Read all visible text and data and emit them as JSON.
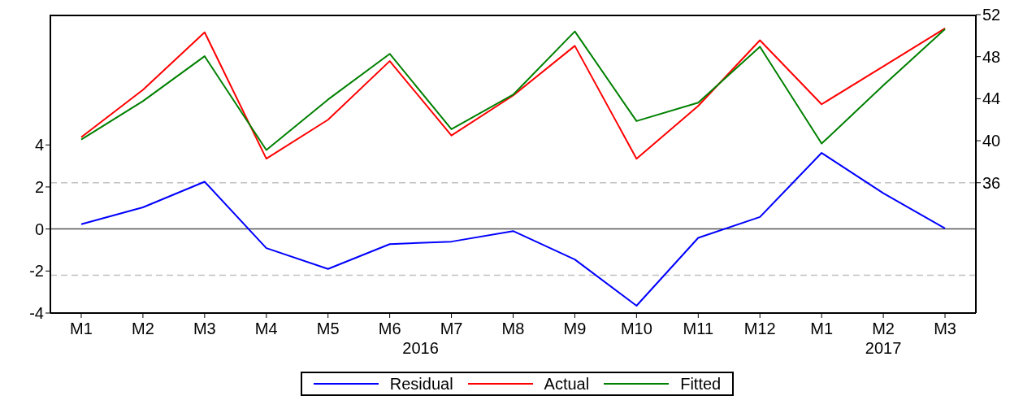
{
  "chart_data": {
    "type": "line",
    "categories": [
      "M1",
      "M2",
      "M3",
      "M4",
      "M5",
      "M6",
      "M7",
      "M8",
      "M9",
      "M10",
      "M11",
      "M12",
      "M1",
      "M2",
      "M3"
    ],
    "series": [
      {
        "name": "Residual",
        "color": "#0000ff",
        "values": [
          0.23,
          1.03,
          2.25,
          -0.91,
          -1.9,
          -0.72,
          -0.6,
          -0.1,
          -1.45,
          -3.65,
          -0.42,
          0.57,
          3.62,
          1.7,
          0.03
        ]
      },
      {
        "name": "Actual",
        "color": "#ff0000",
        "axis": "y2",
        "values": [
          40.34,
          44.84,
          50.32,
          38.29,
          42.0,
          47.58,
          40.5,
          44.3,
          49.03,
          38.29,
          43.31,
          49.56,
          43.47,
          47.08,
          50.7
        ]
      },
      {
        "name": "Fitted",
        "color": "#008000",
        "axis": "y2",
        "values": [
          40.11,
          43.77,
          48.04,
          39.12,
          43.92,
          48.27,
          41.1,
          44.38,
          50.4,
          41.87,
          43.62,
          48.95,
          39.73,
          45.26,
          50.63
        ]
      }
    ],
    "ylim": [
      -4,
      10.2
    ],
    "yticks": [
      -4,
      -2,
      0,
      2,
      4
    ],
    "y2lim": [
      23.6,
      52
    ],
    "y2ticks": [
      36,
      40,
      44,
      48,
      52
    ],
    "ref_lines": [
      {
        "axis": "y",
        "value": 0,
        "color": "#555555",
        "line_style": "solid"
      },
      {
        "axis": "y",
        "value": 2.2,
        "color": "#c0c0c0",
        "line_style": "dashed"
      },
      {
        "axis": "y",
        "value": -2.2,
        "color": "#c0c0c0",
        "line_style": "dashed"
      }
    ],
    "annotations": [
      "2016",
      "2017"
    ],
    "grid": false,
    "legend": "bottom",
    "marker": "none",
    "line_style": "solid"
  }
}
